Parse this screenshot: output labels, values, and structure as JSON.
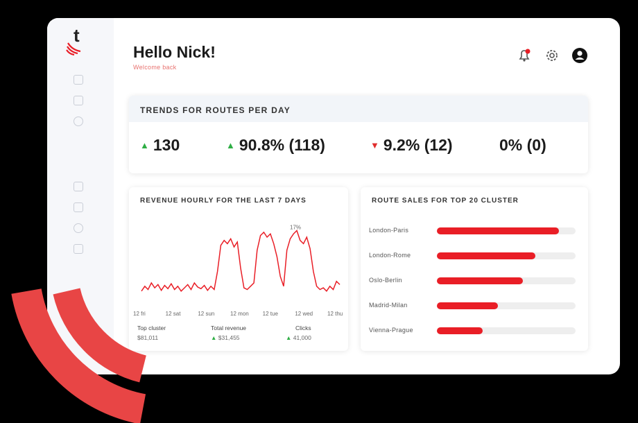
{
  "header": {
    "greeting": "Hello Nick!",
    "subtitle": "Welcome back"
  },
  "icons": {
    "logo_letter": "t",
    "notifications": "bell-icon",
    "settings": "gear-icon",
    "profile": "user-icon",
    "sidebar": [
      "sidebar-icon-1",
      "sidebar-icon-2",
      "sidebar-icon-3",
      "sidebar-icon-4",
      "sidebar-icon-5"
    ]
  },
  "trends": {
    "title": "TRENDS FOR ROUTES PER DAY",
    "metrics": [
      {
        "direction": "up",
        "value": "130"
      },
      {
        "direction": "up",
        "value": "90.8% (118)"
      },
      {
        "direction": "down",
        "value": "9.2% (12)"
      },
      {
        "direction": "none",
        "value": "0% (0)"
      }
    ]
  },
  "revenue": {
    "title": "REVENUE HOURLY FOR THE LAST 7 DAYS",
    "peak_label": "17%",
    "x_ticks": [
      "12 fri",
      "12 sat",
      "12 sun",
      "12 mon",
      "12 tue",
      "12 wed",
      "12 thu"
    ],
    "stats": [
      {
        "label": "Top cluster",
        "value": "$81,011"
      },
      {
        "label": "Total revenue",
        "value": "$31,455"
      },
      {
        "label": "Clicks",
        "value": "41,000"
      }
    ]
  },
  "route_sales": {
    "title": "ROUTE SALES FOR TOP 20 CLUSTER",
    "bars": [
      {
        "label": "London-Paris",
        "value": 0.88
      },
      {
        "label": "London-Rome",
        "value": 0.71
      },
      {
        "label": "Oslo-Berlin",
        "value": 0.62
      },
      {
        "label": "Madrid-Milan",
        "value": 0.44
      },
      {
        "label": "Vienna-Prague",
        "value": 0.33
      }
    ]
  },
  "chart_data": {
    "type": "line",
    "title": "REVENUE HOURLY FOR THE LAST 7 DAYS",
    "xlabel": "",
    "ylabel": "",
    "x": [
      0,
      1,
      2,
      3,
      4,
      5,
      6,
      7,
      8,
      9,
      10,
      11,
      12,
      13,
      14,
      15,
      16,
      17,
      18,
      19,
      20,
      21,
      22,
      23,
      24,
      25,
      26,
      27,
      28,
      29,
      30,
      31,
      32,
      33,
      34,
      35,
      36,
      37,
      38,
      39,
      40,
      41,
      42,
      43,
      44,
      45,
      46,
      47,
      48,
      49,
      50,
      51,
      52,
      53,
      54,
      55,
      56,
      57,
      58,
      59,
      60
    ],
    "series": [
      {
        "values": [
          12,
          18,
          14,
          22,
          16,
          20,
          13,
          19,
          15,
          21,
          14,
          18,
          12,
          16,
          20,
          14,
          22,
          17,
          15,
          19,
          13,
          18,
          14,
          36,
          68,
          74,
          70,
          76,
          66,
          72,
          40,
          16,
          14,
          18,
          22,
          62,
          80,
          84,
          78,
          82,
          70,
          54,
          30,
          18,
          62,
          76,
          82,
          86,
          74,
          70,
          78,
          64,
          36,
          18,
          14,
          16,
          12,
          18,
          14,
          24,
          20
        ]
      }
    ],
    "ylim": [
      0,
      100
    ]
  }
}
